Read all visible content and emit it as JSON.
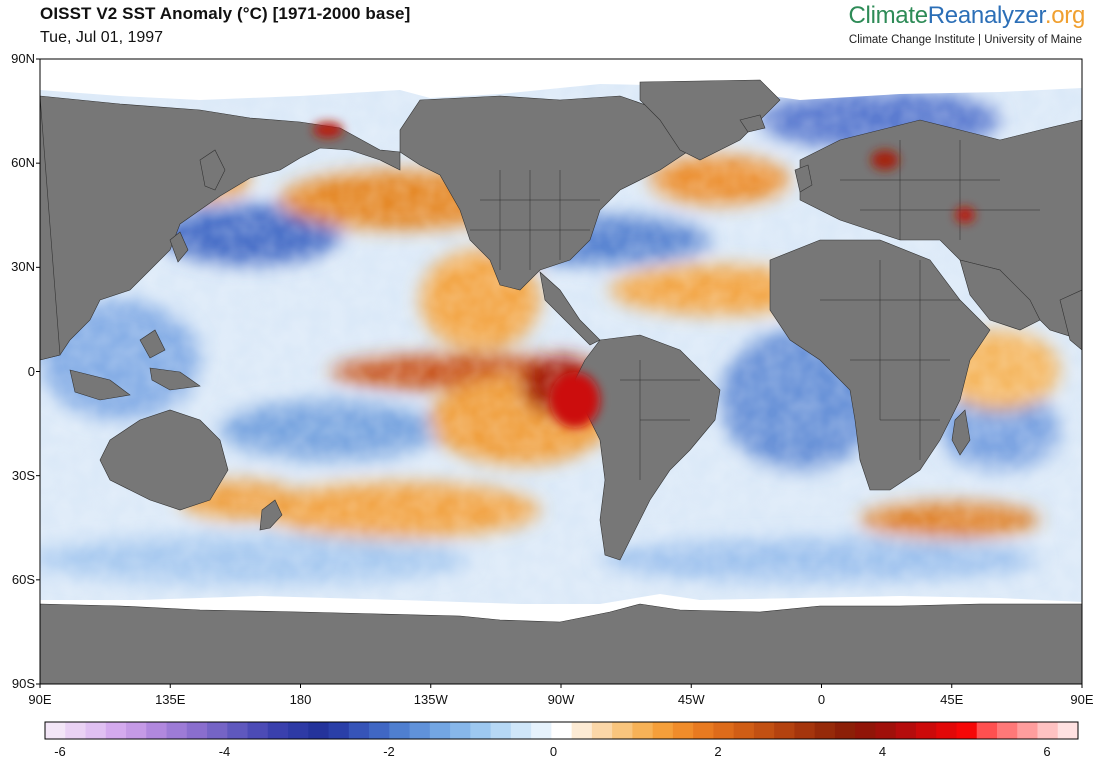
{
  "header": {
    "title": "OISST V2 SST Anomaly (°C) [1971-2000 base]",
    "date": "Tue, Jul 01, 1997"
  },
  "brand": {
    "part1": "Climate",
    "part2": "Reanalyzer",
    "part3": ".org",
    "subtitle": "Climate Change Institute | University of Maine",
    "colors": {
      "climate": "#2e8b57",
      "reanalyzer": "#2c6fb7",
      "org": "#f0a030"
    }
  },
  "map": {
    "projection": "equirectangular",
    "lon_range": [
      90,
      450
    ],
    "lat_range": [
      -90,
      90
    ],
    "lat_ticks": [
      "90N",
      "60N",
      "30N",
      "0",
      "30S",
      "60S",
      "90S"
    ],
    "lon_ticks": [
      "90E",
      "135E",
      "180",
      "135W",
      "90W",
      "45W",
      "0",
      "45E",
      "90E"
    ],
    "land_color": "#7a7a7a",
    "ice_color": "#ffffff"
  },
  "colorbar": {
    "range": [
      -6,
      6
    ],
    "tick_labels": [
      "-6",
      "-4",
      "-2",
      "0",
      "2",
      "4",
      "6"
    ],
    "colors": [
      "#f3e6f7",
      "#ead2f4",
      "#e0c0f2",
      "#d4aaee",
      "#c59ae6",
      "#b188de",
      "#9d7bd6",
      "#8a6ece",
      "#7564c6",
      "#5f58be",
      "#4c4bb6",
      "#3a40ad",
      "#2e3aa5",
      "#24339b",
      "#2a3fa8",
      "#3654b8",
      "#4067c4",
      "#4f7fd0",
      "#6092da",
      "#73a6e3",
      "#87b7ea",
      "#9dc8f0",
      "#b6d8f5",
      "#cfe6f9",
      "#e6f2fc",
      "#ffffff",
      "#fdebd4",
      "#fbd7a8",
      "#f9c57d",
      "#f7b257",
      "#f59f3a",
      "#f08c2a",
      "#e87a20",
      "#dd6b1a",
      "#d05d15",
      "#c25012",
      "#b4420f",
      "#a5350c",
      "#962a09",
      "#8c1f07",
      "#911508",
      "#a0100a",
      "#b50c0c",
      "#cc0a0a",
      "#e20808",
      "#f60707",
      "#ff5050",
      "#ff7878",
      "#ff9d9d",
      "#ffc2c2",
      "#ffe1e1"
    ]
  }
}
